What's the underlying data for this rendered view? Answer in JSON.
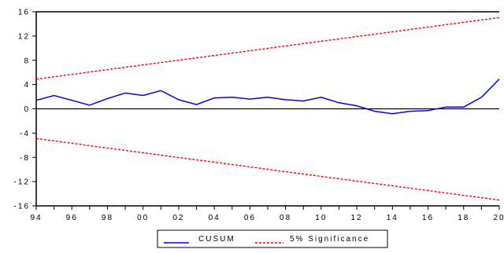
{
  "chart_data": {
    "type": "line",
    "title": "",
    "xlabel": "",
    "ylabel": "",
    "x": [
      1994,
      1995,
      1996,
      1997,
      1998,
      1999,
      2000,
      2001,
      2002,
      2003,
      2004,
      2005,
      2006,
      2007,
      2008,
      2009,
      2010,
      2011,
      2012,
      2013,
      2014,
      2015,
      2016,
      2017,
      2018,
      2019,
      2020
    ],
    "x_tick_labels": [
      "94",
      "96",
      "98",
      "00",
      "02",
      "04",
      "06",
      "08",
      "10",
      "12",
      "14",
      "16",
      "18",
      "20"
    ],
    "x_tick_values": [
      1994,
      1996,
      1998,
      2000,
      2002,
      2004,
      2006,
      2008,
      2010,
      2012,
      2014,
      2016,
      2018,
      2020
    ],
    "xlim": [
      1994,
      2020
    ],
    "ylim": [
      -16,
      16
    ],
    "y_ticks": [
      -16,
      -12,
      -8,
      -4,
      0,
      4,
      8,
      12,
      16
    ],
    "y_tick_labels": [
      "-16",
      "-12",
      "-8",
      "-4",
      "0",
      "4",
      "8",
      "12",
      "16"
    ],
    "grid": false,
    "legend_position": "bottom-center",
    "series": [
      {
        "name": "CUSUM",
        "color": "#0000ff",
        "style": "solid",
        "values": [
          1.4,
          2.2,
          1.4,
          0.6,
          1.7,
          2.6,
          2.2,
          3.0,
          1.5,
          0.7,
          1.8,
          1.9,
          1.6,
          1.9,
          1.5,
          1.3,
          1.9,
          1.0,
          0.5,
          -0.4,
          -0.8,
          -0.4,
          -0.3,
          0.3,
          0.3,
          1.9,
          4.9
        ]
      },
      {
        "name": "5% Significance",
        "color": "#ff0000",
        "style": "dashed",
        "upper": [
          4.9,
          5.29,
          5.68,
          6.07,
          6.46,
          6.85,
          7.24,
          7.63,
          8.02,
          8.41,
          8.8,
          9.19,
          9.58,
          9.97,
          10.36,
          10.75,
          11.14,
          11.53,
          11.92,
          12.31,
          12.7,
          13.09,
          13.48,
          13.87,
          14.26,
          14.65,
          15.04
        ],
        "lower": [
          -4.9,
          -5.29,
          -5.68,
          -6.07,
          -6.46,
          -6.85,
          -7.24,
          -7.63,
          -8.02,
          -8.41,
          -8.8,
          -9.19,
          -9.58,
          -9.97,
          -10.36,
          -10.75,
          -11.14,
          -11.53,
          -11.92,
          -12.31,
          -12.7,
          -13.09,
          -13.48,
          -13.87,
          -14.26,
          -14.65,
          -15.04
        ]
      }
    ],
    "zero_line_color": "#000000"
  }
}
